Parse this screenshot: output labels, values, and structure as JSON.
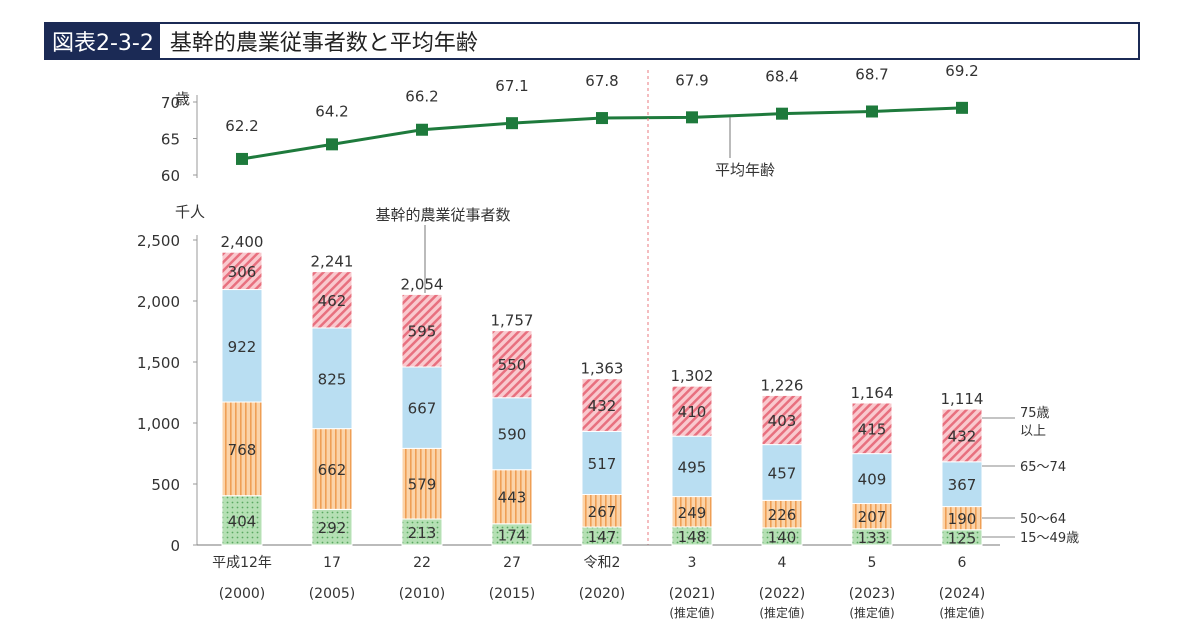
{
  "title": {
    "figure_number": "図表2-3-2",
    "text": "基幹的農業従事者数と平均年齢"
  },
  "chart_data": [
    {
      "type": "line",
      "ylabel": "歳",
      "ylim": [
        60,
        70
      ],
      "yticks": [
        "60",
        "65",
        "70"
      ],
      "series": [
        {
          "name": "平均年齢",
          "values": [
            62.2,
            64.2,
            66.2,
            67.1,
            67.8,
            67.9,
            68.4,
            68.7,
            69.2
          ]
        }
      ],
      "value_labels": [
        "62.2",
        "64.2",
        "66.2",
        "67.1",
        "67.8",
        "67.9",
        "68.4",
        "68.7",
        "69.2"
      ],
      "annotation": "平均年齢",
      "color": "#1e7a3c"
    },
    {
      "type": "bar",
      "stacked": true,
      "ylabel": "千人",
      "ylim": [
        0,
        2500
      ],
      "yticks": [
        "0",
        "500",
        "1,000",
        "1,500",
        "2,000",
        "2,500"
      ],
      "categories": [
        {
          "era": "平成12年",
          "year": "(2000)",
          "note": ""
        },
        {
          "era": "17",
          "year": "(2005)",
          "note": ""
        },
        {
          "era": "22",
          "year": "(2010)",
          "note": ""
        },
        {
          "era": "27",
          "year": "(2015)",
          "note": ""
        },
        {
          "era": "令和2",
          "year": "(2020)",
          "note": ""
        },
        {
          "era": "3",
          "year": "(2021)",
          "note": "(推定値)"
        },
        {
          "era": "4",
          "year": "(2022)",
          "note": "(推定値)"
        },
        {
          "era": "5",
          "year": "(2023)",
          "note": "(推定値)"
        },
        {
          "era": "6",
          "year": "(2024)",
          "note": "(推定値)"
        }
      ],
      "series": [
        {
          "name": "15〜49歳",
          "values": [
            404,
            292,
            213,
            174,
            147,
            148,
            140,
            133,
            125
          ],
          "color": "#a9d9a9",
          "pattern": "dots"
        },
        {
          "name": "50〜64",
          "values": [
            768,
            662,
            579,
            443,
            267,
            249,
            226,
            207,
            190
          ],
          "color": "#f9c896",
          "pattern": "vertical-stripes"
        },
        {
          "name": "65〜74",
          "values": [
            922,
            825,
            667,
            590,
            517,
            495,
            457,
            409,
            367
          ],
          "color": "#b9def2",
          "pattern": "solid"
        },
        {
          "name": "75歳以上",
          "values": [
            306,
            462,
            595,
            550,
            432,
            410,
            403,
            415,
            432
          ],
          "color": "#f6b3bb",
          "pattern": "diagonal-stripes"
        }
      ],
      "legend_lines": [
        [
          "75歳",
          "以上"
        ],
        [
          "65〜74"
        ],
        [
          "50〜64"
        ],
        [
          "15〜49歳"
        ]
      ],
      "totals": [
        "2,400",
        "2,241",
        "2,054",
        "1,757",
        "1,363",
        "1,302",
        "1,226",
        "1,164",
        "1,114"
      ],
      "annotation": "基幹的農業従事者数",
      "legend": "right"
    }
  ]
}
